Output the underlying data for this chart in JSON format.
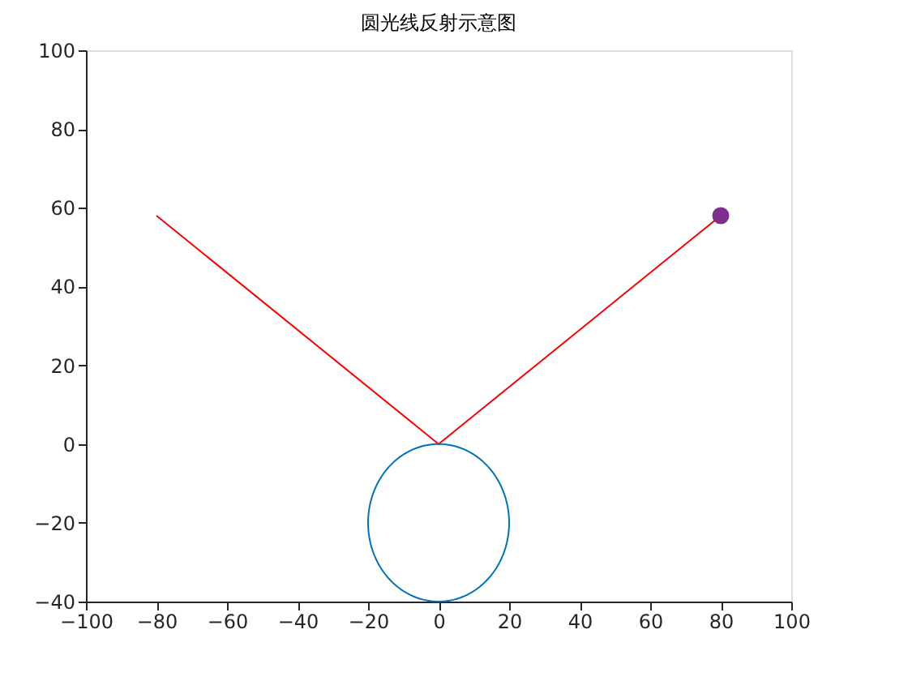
{
  "chart_data": {
    "type": "line",
    "title": "圆光线反射示意图",
    "xlim": [
      -100,
      100
    ],
    "ylim": [
      -40,
      100
    ],
    "xticks": [
      -100,
      -80,
      -60,
      -40,
      -20,
      0,
      20,
      40,
      60,
      80,
      100
    ],
    "yticks": [
      -40,
      -20,
      0,
      20,
      40,
      60,
      80,
      100
    ],
    "grid": false,
    "series": [
      {
        "color": "#ff0000",
        "x": [
          -80,
          0,
          80
        ],
        "values": [
          58,
          0,
          58
        ]
      },
      {
        "type": "scatter",
        "color": "#7e2f8e",
        "marker": "circle",
        "x": [
          80
        ],
        "values": [
          58
        ]
      }
    ]
  }
}
